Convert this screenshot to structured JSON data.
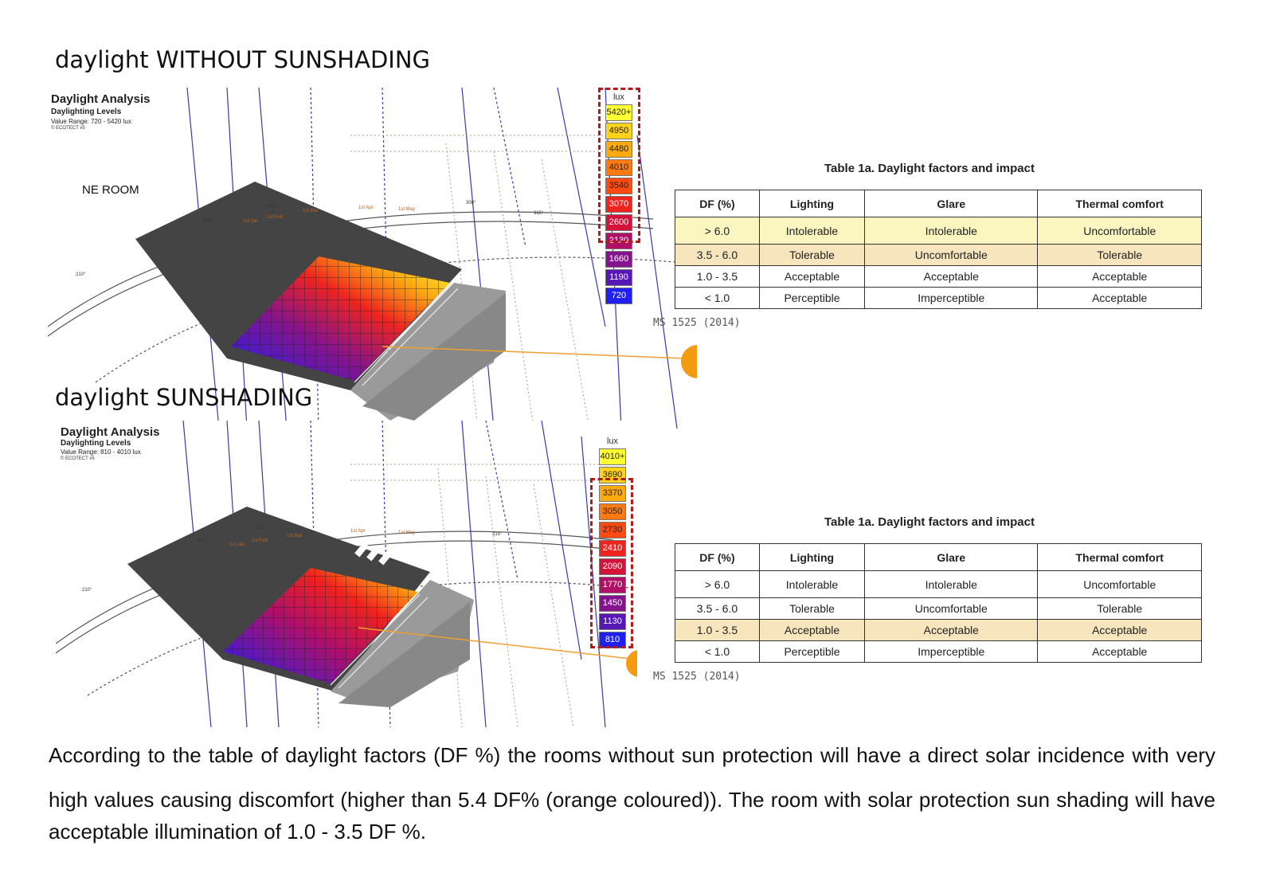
{
  "sections": [
    {
      "heading": "daylight WITHOUT SUNSHADING",
      "analysis": {
        "title": "Daylight Analysis",
        "subtitle": "Daylighting Levels",
        "value_range": "Value Range: 720 - 5420 lux",
        "credit": "© ECOTECT v5",
        "room_label": "NE ROOM",
        "sun_path_labels": [
          "1st Jan",
          "1st Feb",
          "1st Mar",
          "1st Apr",
          "1st May",
          "210°",
          "225°",
          "240°",
          "300°",
          "315°"
        ]
      },
      "legend": {
        "unit": "lux",
        "values": [
          "5420+",
          "4950",
          "4480",
          "4010",
          "3540",
          "3070",
          "2600",
          "2130",
          "1660",
          "1190",
          "720"
        ],
        "colors": [
          "#ffff33",
          "#ffd21c",
          "#ffaa11",
          "#ff7a11",
          "#ff4a11",
          "#f0231e",
          "#d5123a",
          "#b11067",
          "#86138e",
          "#5716b6",
          "#1f1ff0"
        ],
        "highlighted_range": [
          "5420+",
          "2130"
        ]
      },
      "table": {
        "caption": "Table 1a. Daylight factors and impact",
        "headers": [
          "DF (%)",
          "Lighting",
          "Glare",
          "Thermal comfort"
        ],
        "rows": [
          [
            "> 6.0",
            "Intolerable",
            "Intolerable",
            "Uncomfortable"
          ],
          [
            "3.5 - 6.0",
            "Tolerable",
            "Uncomfortable",
            "Tolerable"
          ],
          [
            "1.0 - 3.5",
            "Acceptable",
            "Acceptable",
            "Acceptable"
          ],
          [
            "< 1.0",
            "Perceptible",
            "Imperceptible",
            "Acceptable"
          ]
        ],
        "highlighted_rows": [
          "> 6.0",
          "3.5 - 6.0"
        ],
        "source": "MS 1525 (2014)"
      }
    },
    {
      "heading": "daylight  SUNSHADING",
      "analysis": {
        "title": "Daylight Analysis",
        "subtitle": "Daylighting Levels",
        "value_range": "Value Range: 810 - 4010 lux",
        "credit": "© ECOTECT v5",
        "sun_path_labels": [
          "1st Jan",
          "1st Feb",
          "1st Mar",
          "1st Apr",
          "1st May",
          "210°",
          "225°",
          "240°",
          "315°"
        ]
      },
      "legend": {
        "unit": "lux",
        "values": [
          "4010+",
          "3690",
          "3370",
          "3050",
          "2730",
          "2410",
          "2090",
          "1770",
          "1450",
          "1130",
          "810"
        ],
        "colors": [
          "#ffff33",
          "#ffd21c",
          "#ffaa11",
          "#ff7a11",
          "#ff4a11",
          "#f0231e",
          "#d5123a",
          "#b11067",
          "#86138e",
          "#5716b6",
          "#1f1ff0"
        ],
        "highlighted_range": [
          "3370",
          "810"
        ]
      },
      "table": {
        "caption": "Table 1a. Daylight factors and impact",
        "headers": [
          "DF (%)",
          "Lighting",
          "Glare",
          "Thermal comfort"
        ],
        "rows": [
          [
            "> 6.0",
            "Intolerable",
            "Intolerable",
            "Uncomfortable"
          ],
          [
            "3.5 - 6.0",
            "Tolerable",
            "Uncomfortable",
            "Tolerable"
          ],
          [
            "1.0 - 3.5",
            "Acceptable",
            "Acceptable",
            "Acceptable"
          ],
          [
            "< 1.0",
            "Perceptible",
            "Imperceptible",
            "Acceptable"
          ]
        ],
        "highlighted_rows": [
          "1.0 - 3.5"
        ],
        "source": "MS 1525 (2014)"
      }
    }
  ],
  "conclusion": {
    "line1": "According to the table of daylight factors (DF %) the rooms without sun protection will have a direct solar incidence  with very",
    "line2": "high values causing discomfort (higher than 5.4 DF% (orange coloured)). The room with solar protection sun shading will have",
    "line3": "acceptable illumination of 1.0 - 3.5 DF %."
  }
}
